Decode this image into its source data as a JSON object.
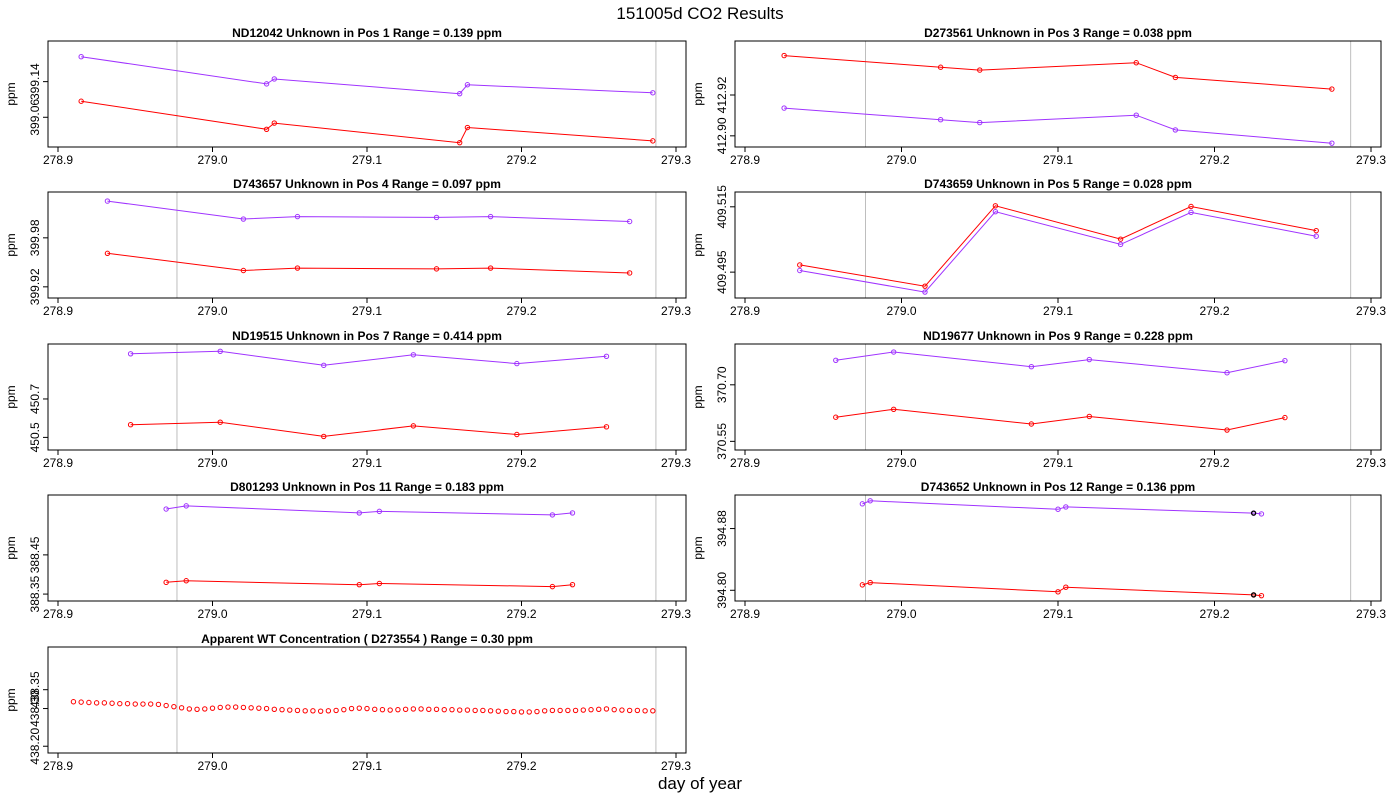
{
  "figure": {
    "title": "151005d  CO2 Results",
    "xlabel": "day of year"
  },
  "colors": {
    "series_a": "#a033ff",
    "series_b": "#ff0000",
    "marker": "#000000",
    "vline": "#bebebe",
    "frame": "#000000"
  },
  "chart_data": [
    {
      "type": "line",
      "title": "ND12042    Unknown in Pos 1         Range =  0.139 ppm",
      "ylabel": "ppm",
      "xlim": [
        278.9,
        279.3
      ],
      "ylim": [
        399.0,
        399.22
      ],
      "xticks": [
        "278.9",
        "279.0",
        "279.1",
        "279.2",
        "279.3"
      ],
      "yticks": [
        {
          "v": 399.06,
          "label": "399.06"
        },
        {
          "v": 399.14,
          "label": "399.14"
        }
      ],
      "vlines": [
        278.977,
        279.287
      ],
      "series": [
        {
          "name": "upper",
          "color": "#a033ff",
          "x": [
            278.915,
            279.035,
            279.04,
            279.16,
            279.165,
            279.285
          ],
          "y": [
            399.196,
            399.135,
            399.146,
            399.113,
            399.133,
            399.115
          ]
        },
        {
          "name": "lower",
          "color": "#ff0000",
          "x": [
            278.915,
            279.035,
            279.04,
            279.16,
            279.165,
            279.285
          ],
          "y": [
            399.096,
            399.033,
            399.047,
            399.003,
            399.037,
            399.007
          ]
        }
      ]
    },
    {
      "type": "line",
      "title": "D273561    Unknown in Pos 3         Range =  0.038 ppm",
      "ylabel": "ppm",
      "xlim": [
        278.9,
        279.3
      ],
      "ylim": [
        412.896,
        412.944
      ],
      "xticks": [
        "278.9",
        "279.0",
        "279.1",
        "279.2",
        "279.3"
      ],
      "yticks": [
        {
          "v": 412.9,
          "label": "412.90"
        },
        {
          "v": 412.92,
          "label": "412.92"
        }
      ],
      "vlines": [
        278.977,
        279.287
      ],
      "series": [
        {
          "name": "upper",
          "color": "#ff0000",
          "x": [
            278.925,
            279.025,
            279.05,
            279.15,
            279.175,
            279.275
          ],
          "y": [
            412.9393,
            412.9336,
            412.9322,
            412.9358,
            412.9286,
            412.9229
          ]
        },
        {
          "name": "lower",
          "color": "#a033ff",
          "x": [
            278.925,
            279.025,
            279.05,
            279.15,
            279.175,
            279.275
          ],
          "y": [
            412.9136,
            412.9079,
            412.9065,
            412.9101,
            412.9029,
            412.8964
          ]
        }
      ]
    },
    {
      "type": "line",
      "title": "D743657    Unknown in Pos 4         Range =  0.097 ppm",
      "ylabel": "ppm",
      "xlim": [
        278.9,
        279.3
      ],
      "ylim": [
        399.91,
        400.03
      ],
      "xticks": [
        "278.9",
        "279.0",
        "279.1",
        "279.2",
        "279.3"
      ],
      "yticks": [
        {
          "v": 399.92,
          "label": "399.92"
        },
        {
          "v": 399.98,
          "label": "399.98"
        }
      ],
      "vlines": [
        278.977,
        279.287
      ],
      "series": [
        {
          "name": "upper",
          "color": "#a033ff",
          "x": [
            278.932,
            279.02,
            279.055,
            279.145,
            279.18,
            279.27
          ],
          "y": [
            400.025,
            400.003,
            400.006,
            400.005,
            400.006,
            400.0
          ]
        },
        {
          "name": "lower",
          "color": "#ff0000",
          "x": [
            278.932,
            279.02,
            279.055,
            279.145,
            279.18,
            279.27
          ],
          "y": [
            399.961,
            399.94,
            399.943,
            399.942,
            399.943,
            399.937
          ]
        }
      ]
    },
    {
      "type": "line",
      "title": "D743659    Unknown in Pos 5         Range =  0.028 ppm",
      "ylabel": "ppm",
      "xlim": [
        278.9,
        279.3
      ],
      "ylim": [
        409.488,
        409.518
      ],
      "xticks": [
        "278.9",
        "279.0",
        "279.1",
        "279.2",
        "279.3"
      ],
      "yticks": [
        {
          "v": 409.495,
          "label": "409.495"
        },
        {
          "v": 409.515,
          "label": "409.515"
        }
      ],
      "vlines": [
        278.977,
        279.287
      ],
      "series": [
        {
          "name": "upper",
          "color": "#ff0000",
          "x": [
            278.935,
            279.015,
            279.06,
            279.14,
            279.185,
            279.265
          ],
          "y": [
            409.4972,
            409.4907,
            409.5153,
            409.5051,
            409.5151,
            409.5077
          ]
        },
        {
          "name": "lower",
          "color": "#a033ff",
          "x": [
            278.935,
            279.015,
            279.06,
            279.14,
            279.185,
            279.265
          ],
          "y": [
            409.4955,
            409.4889,
            409.5135,
            409.5035,
            409.5133,
            409.506
          ]
        }
      ]
    },
    {
      "type": "line",
      "title": "ND19515    Unknown in Pos 7         Range =  0.414 ppm",
      "ylabel": "ppm",
      "xlim": [
        278.9,
        279.3
      ],
      "ylim": [
        450.45,
        450.96
      ],
      "xticks": [
        "278.9",
        "279.0",
        "279.1",
        "279.2",
        "279.3"
      ],
      "yticks": [
        {
          "v": 450.5,
          "label": "450.5"
        },
        {
          "v": 450.7,
          "label": "450.7"
        }
      ],
      "vlines": [
        278.977,
        279.287
      ],
      "series": [
        {
          "name": "upper",
          "color": "#a033ff",
          "x": [
            278.947,
            279.005,
            279.072,
            279.13,
            279.197,
            279.255
          ],
          "y": [
            450.935,
            450.948,
            450.875,
            450.93,
            450.884,
            450.922
          ]
        },
        {
          "name": "lower",
          "color": "#ff0000",
          "x": [
            278.947,
            279.005,
            279.072,
            279.13,
            279.197,
            279.255
          ],
          "y": [
            450.566,
            450.579,
            450.505,
            450.56,
            450.515,
            450.555
          ]
        }
      ]
    },
    {
      "type": "line",
      "title": "ND19677    Unknown in Pos 9         Range =  0.228 ppm",
      "ylabel": "ppm",
      "xlim": [
        278.9,
        279.3
      ],
      "ylim": [
        370.535,
        370.795
      ],
      "xticks": [
        "278.9",
        "279.0",
        "279.1",
        "279.2",
        "279.3"
      ],
      "yticks": [
        {
          "v": 370.55,
          "label": "370.55"
        },
        {
          "v": 370.7,
          "label": "370.70"
        }
      ],
      "vlines": [
        278.977,
        279.287
      ],
      "series": [
        {
          "name": "upper",
          "color": "#a033ff",
          "x": [
            278.958,
            278.995,
            279.083,
            279.12,
            279.208,
            279.245
          ],
          "y": [
            370.765,
            370.787,
            370.748,
            370.767,
            370.732,
            370.764
          ]
        },
        {
          "name": "lower",
          "color": "#ff0000",
          "x": [
            278.958,
            278.995,
            279.083,
            279.12,
            279.208,
            279.245
          ],
          "y": [
            370.614,
            370.635,
            370.596,
            370.616,
            370.58,
            370.613
          ]
        }
      ]
    },
    {
      "type": "line",
      "title": "D801293    Unknown in Pos 11         Range =  0.183 ppm",
      "ylabel": "ppm",
      "xlim": [
        278.9,
        279.3
      ],
      "ylim": [
        388.34,
        388.59
      ],
      "xticks": [
        "278.9",
        "279.0",
        "279.1",
        "279.2",
        "279.3"
      ],
      "yticks": [
        {
          "v": 388.35,
          "label": "388.35"
        },
        {
          "v": 388.45,
          "label": "388.45"
        }
      ],
      "vlines": [
        278.977,
        279.287
      ],
      "series": [
        {
          "name": "upper",
          "color": "#a033ff",
          "x": [
            278.97,
            278.983,
            279.095,
            279.108,
            279.22,
            279.233
          ],
          "y": [
            388.567,
            388.575,
            388.557,
            388.561,
            388.552,
            388.557
          ]
        },
        {
          "name": "lower",
          "color": "#ff0000",
          "x": [
            278.97,
            278.983,
            279.095,
            279.108,
            279.22,
            279.233
          ],
          "y": [
            388.38,
            388.384,
            388.374,
            388.377,
            388.369,
            388.374
          ]
        }
      ]
    },
    {
      "type": "line",
      "title": "D743652    Unknown in Pos 12         Range =  0.136 ppm",
      "ylabel": "ppm",
      "xlim": [
        278.9,
        279.3
      ],
      "ylim": [
        394.79,
        394.917
      ],
      "xticks": [
        "278.9",
        "279.0",
        "279.1",
        "279.2",
        "279.3"
      ],
      "yticks": [
        {
          "v": 394.8,
          "label": "394.80"
        },
        {
          "v": 394.88,
          "label": "394.88"
        }
      ],
      "vlines": [
        278.977,
        279.287
      ],
      "series": [
        {
          "name": "upper",
          "color": "#a033ff",
          "x": [
            278.975,
            278.98,
            279.1,
            279.105,
            279.225,
            279.23
          ],
          "y": [
            394.912,
            394.916,
            394.905,
            394.908,
            394.9,
            394.899
          ]
        },
        {
          "name": "lower",
          "color": "#ff0000",
          "x": [
            278.975,
            278.98,
            279.1,
            279.105,
            279.225,
            279.23
          ],
          "y": [
            394.807,
            394.81,
            394.798,
            394.804,
            394.794,
            394.793
          ]
        }
      ],
      "markers": [
        {
          "x": 279.225,
          "y": 394.9
        },
        {
          "x": 279.225,
          "y": 394.794
        }
      ]
    },
    {
      "type": "scatter",
      "title": "Apparent WT Concentration ( D273554 )          Range = 0.30 ppm",
      "ylabel": "ppm",
      "xlim": [
        278.9,
        279.3
      ],
      "ylim": [
        438.19,
        438.45
      ],
      "xticks": [
        "278.9",
        "279.0",
        "279.1",
        "279.2",
        "279.3"
      ],
      "yticks": [
        {
          "v": 438.2,
          "label": "438.20"
        },
        {
          "v": 438.3,
          "label": "438.30"
        },
        {
          "v": 438.35,
          "label": "438.35"
        }
      ],
      "vlines": [
        278.977,
        279.287
      ],
      "series": [
        {
          "name": "wt",
          "color": "#ff0000",
          "x": [
            278.91,
            278.915,
            278.92,
            278.925,
            278.93,
            278.935,
            278.94,
            278.945,
            278.95,
            278.955,
            278.96,
            278.965,
            278.97,
            278.975,
            278.98,
            278.985,
            278.99,
            278.995,
            279.0,
            279.005,
            279.01,
            279.015,
            279.02,
            279.025,
            279.03,
            279.035,
            279.04,
            279.045,
            279.05,
            279.055,
            279.06,
            279.065,
            279.07,
            279.075,
            279.08,
            279.085,
            279.09,
            279.095,
            279.1,
            279.105,
            279.11,
            279.115,
            279.12,
            279.125,
            279.13,
            279.135,
            279.14,
            279.145,
            279.15,
            279.155,
            279.16,
            279.165,
            279.17,
            279.175,
            279.18,
            279.185,
            279.19,
            279.195,
            279.2,
            279.205,
            279.21,
            279.215,
            279.22,
            279.225,
            279.23,
            279.235,
            279.24,
            279.245,
            279.25,
            279.255,
            279.26,
            279.265,
            279.27,
            279.275,
            279.28,
            279.285
          ],
          "y": [
            438.318,
            438.317,
            438.316,
            438.315,
            438.315,
            438.314,
            438.313,
            438.313,
            438.312,
            438.312,
            438.312,
            438.311,
            438.308,
            438.305,
            438.302,
            438.299,
            438.298,
            438.299,
            438.301,
            438.303,
            438.304,
            438.304,
            438.303,
            438.302,
            438.301,
            438.3,
            438.298,
            438.297,
            438.296,
            438.295,
            438.294,
            438.294,
            438.293,
            438.294,
            438.295,
            438.297,
            438.3,
            438.301,
            438.3,
            438.298,
            438.297,
            438.296,
            438.297,
            438.298,
            438.299,
            438.299,
            438.298,
            438.298,
            438.297,
            438.297,
            438.296,
            438.296,
            438.295,
            438.295,
            438.294,
            438.293,
            438.292,
            438.292,
            438.291,
            438.291,
            438.292,
            438.294,
            438.295,
            438.295,
            438.295,
            438.295,
            438.296,
            438.297,
            438.298,
            438.299,
            438.297,
            438.296,
            438.295,
            438.295,
            438.294,
            438.294
          ]
        }
      ]
    }
  ]
}
